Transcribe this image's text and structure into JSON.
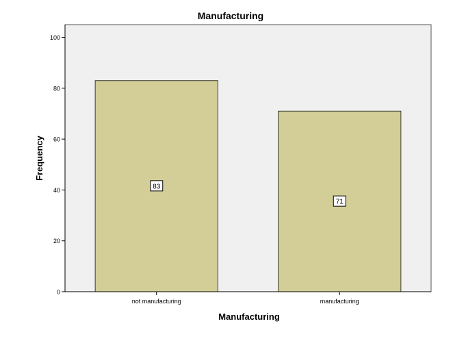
{
  "chart_data": {
    "type": "bar",
    "title": "Manufacturing",
    "xlabel": "Manufacturing",
    "ylabel": "Frequency",
    "categories": [
      "not manufacturing",
      "manufacturing"
    ],
    "values": [
      83,
      71
    ],
    "data_labels": [
      "83",
      "71"
    ],
    "ylim": [
      0,
      105
    ],
    "yticks": [
      0,
      20,
      40,
      60,
      80,
      100
    ],
    "grid": false,
    "legend": "none",
    "colors": {
      "plot_background": "#f0f0f0",
      "bar_fill": "#d3ce97",
      "bar_stroke": "#3a3a2e",
      "axis": "#000000",
      "label_box_fill": "#ffffff"
    }
  }
}
